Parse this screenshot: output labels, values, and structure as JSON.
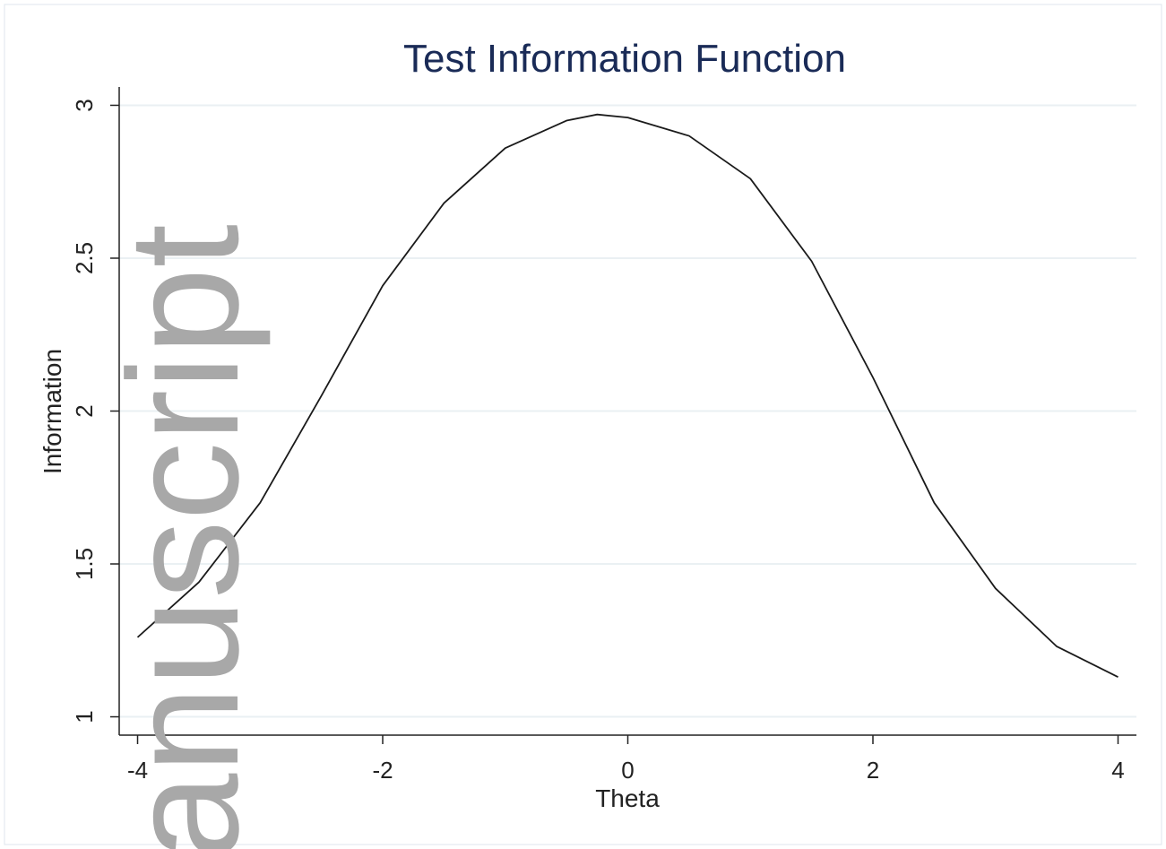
{
  "chart_data": {
    "type": "line",
    "title": "Test Information Function",
    "x_label": "Theta",
    "y_label": "Information",
    "watermark": "anuscript",
    "x": [
      -4,
      -3.5,
      -3,
      -2.5,
      -2,
      -1.5,
      -1,
      -0.5,
      -0.25,
      0,
      0.5,
      1,
      1.5,
      2,
      2.5,
      3,
      3.5,
      4
    ],
    "series": [
      {
        "color": "#1a1a1a",
        "values": [
          1.26,
          1.44,
          1.7,
          2.05,
          2.41,
          2.68,
          2.86,
          2.95,
          2.97,
          2.96,
          2.9,
          2.76,
          2.49,
          2.11,
          1.7,
          1.42,
          1.23,
          1.13
        ]
      }
    ],
    "xlim": [
      -4.15,
      4.15
    ],
    "ylim": [
      0.94,
      3.06
    ],
    "xticks": [
      -4,
      -2,
      0,
      2,
      4
    ],
    "yticks": [
      1,
      1.5,
      2,
      2.5,
      3
    ],
    "grid": true
  }
}
